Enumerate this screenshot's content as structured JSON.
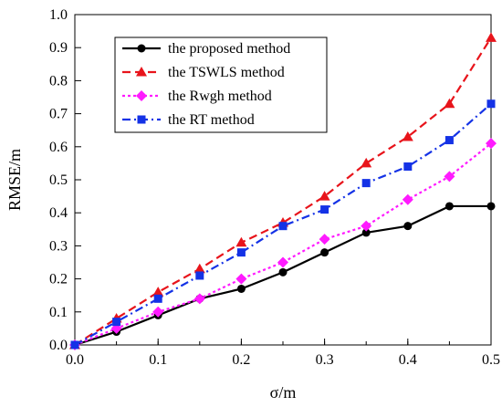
{
  "chart_data": {
    "type": "line",
    "title": "",
    "xlabel": "σ/m",
    "ylabel": "RMSE/m",
    "xlim": [
      0.0,
      0.5
    ],
    "ylim": [
      0.0,
      1.0
    ],
    "xticks": [
      0.0,
      0.1,
      0.2,
      0.3,
      0.4,
      0.5
    ],
    "xtick_labels": [
      "0.0",
      "0.1",
      "0.2",
      "0.3",
      "0.4",
      "0.5"
    ],
    "yticks": [
      0.0,
      0.1,
      0.2,
      0.3,
      0.4,
      0.5,
      0.6,
      0.7,
      0.8,
      0.9,
      1.0
    ],
    "ytick_labels": [
      "0.0",
      "0.1",
      "0.2",
      "0.3",
      "0.4",
      "0.5",
      "0.6",
      "0.7",
      "0.8",
      "0.9",
      "1.0"
    ],
    "grid": false,
    "legend_position": "top-left",
    "x": [
      0.0,
      0.05,
      0.1,
      0.15,
      0.2,
      0.25,
      0.3,
      0.35,
      0.4,
      0.45,
      0.5
    ],
    "series": [
      {
        "name": "the proposed method",
        "color": "#000000",
        "line_style": "solid",
        "marker": "circle",
        "values": [
          0.0,
          0.04,
          0.09,
          0.14,
          0.17,
          0.22,
          0.28,
          0.34,
          0.36,
          0.42,
          0.42
        ]
      },
      {
        "name": "the TSWLS method",
        "color": "#e8141b",
        "line_style": "dashed",
        "marker": "triangle",
        "values": [
          0.0,
          0.08,
          0.16,
          0.23,
          0.31,
          0.37,
          0.45,
          0.55,
          0.63,
          0.73,
          0.93
        ]
      },
      {
        "name": "the Rwgh method",
        "color": "#ff1aff",
        "line_style": "dotted",
        "marker": "diamond",
        "values": [
          0.0,
          0.05,
          0.1,
          0.14,
          0.2,
          0.25,
          0.32,
          0.36,
          0.44,
          0.51,
          0.61
        ]
      },
      {
        "name": "the RT method",
        "color": "#1432e6",
        "line_style": "dashdot",
        "marker": "square",
        "values": [
          0.0,
          0.07,
          0.14,
          0.21,
          0.28,
          0.36,
          0.41,
          0.49,
          0.54,
          0.62,
          0.73
        ]
      }
    ]
  }
}
